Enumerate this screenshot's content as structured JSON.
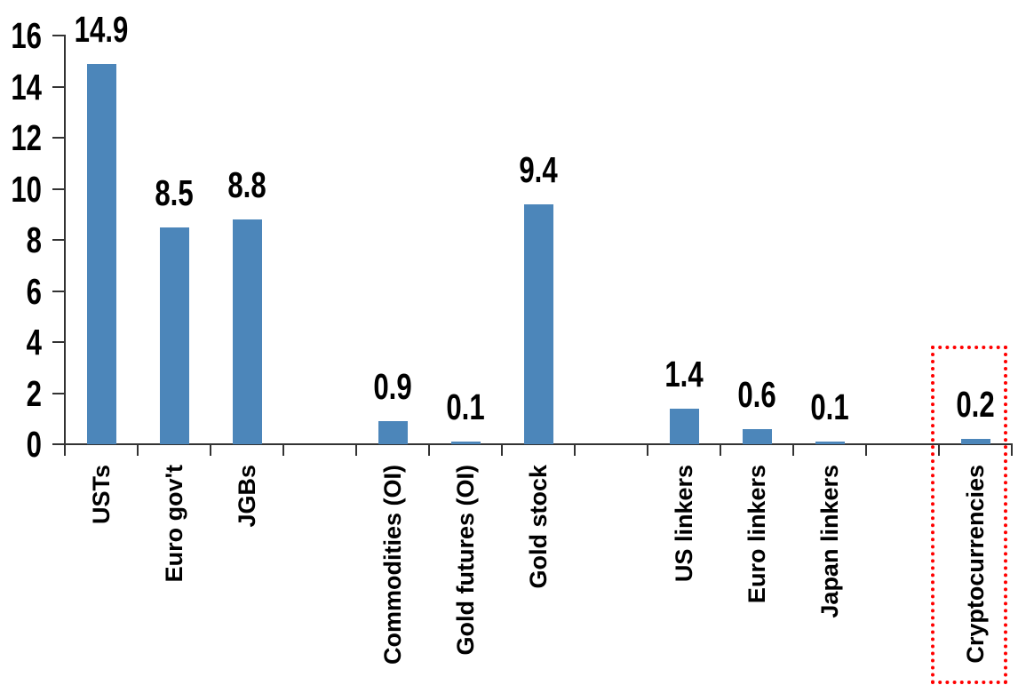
{
  "chart_data": {
    "type": "bar",
    "title": "",
    "xlabel": "",
    "ylabel": "",
    "ylim": [
      0,
      16
    ],
    "ytick_step": 2,
    "grid": false,
    "legend": null,
    "bar_color": "#4C86BA",
    "axis_color": "#333333",
    "text_color": "#000000",
    "highlight_box_color": "#FF0000",
    "categories": [
      "USTs",
      "Euro gov't",
      "JGBs",
      "",
      "Commodities (OI)",
      "Gold futures (OI)",
      "Gold stock",
      "",
      "US linkers",
      "Euro linkers",
      "Japan linkers",
      "",
      "Cryptocurrencies"
    ],
    "values": [
      14.9,
      8.5,
      8.8,
      null,
      0.9,
      0.1,
      9.4,
      null,
      1.4,
      0.6,
      0.1,
      null,
      0.2
    ],
    "data_labels": [
      "14.9",
      "8.5",
      "8.8",
      "",
      "0.9",
      "0.1",
      "9.4",
      "",
      "1.4",
      "0.6",
      "0.1",
      "",
      "0.2"
    ],
    "ytick_labels": [
      "0",
      "2",
      "4",
      "6",
      "8",
      "10",
      "12",
      "14",
      "16"
    ],
    "highlighted_category": "Cryptocurrencies",
    "highlight_style": "red-dotted-box"
  }
}
